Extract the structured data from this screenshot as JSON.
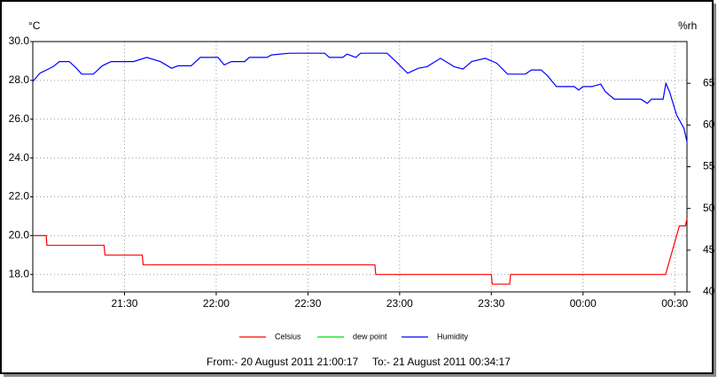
{
  "chart_data": {
    "type": "line",
    "ylabel": "°C",
    "y2label": "%rh",
    "xlim": [
      0,
      214
    ],
    "xticks": [
      {
        "value": 30,
        "label": "21:30"
      },
      {
        "value": 60,
        "label": "22:00"
      },
      {
        "value": 90,
        "label": "22:30"
      },
      {
        "value": 120,
        "label": "23:00"
      },
      {
        "value": 150,
        "label": "23:30"
      },
      {
        "value": 180,
        "label": "00:00"
      },
      {
        "value": 210,
        "label": "00:30"
      }
    ],
    "ylim": [
      17.1,
      30.0
    ],
    "yticks": [
      {
        "value": 18,
        "label": "18.0"
      },
      {
        "value": 20,
        "label": "20.0"
      },
      {
        "value": 22,
        "label": "22.0"
      },
      {
        "value": 24,
        "label": "24.0"
      },
      {
        "value": 26,
        "label": "26.0"
      },
      {
        "value": 28,
        "label": "28.0"
      },
      {
        "value": 30,
        "label": "30.0"
      }
    ],
    "y2lim": [
      40,
      70
    ],
    "y2ticks": [
      40,
      45,
      50,
      55,
      60,
      65
    ],
    "grid": true,
    "series": [
      {
        "name": "Celsius",
        "color": "#ff0000",
        "x": [
          0,
          4.4,
          4.6,
          23.3,
          23.6,
          35.8,
          36.1,
          111.9,
          112.2,
          150,
          150.3,
          156,
          156.3,
          207,
          211.5,
          213.5,
          214
        ],
        "values": [
          20,
          20,
          19.5,
          19.5,
          19,
          19,
          18.5,
          18.5,
          18,
          18,
          17.5,
          17.5,
          18,
          18,
          20.5,
          20.5,
          20.9
        ]
      },
      {
        "name": "dew point",
        "color": "#00dd00",
        "x": [],
        "values": []
      },
      {
        "name": "Humidity",
        "color": "#0000ff",
        "axis": "y2",
        "x": [
          0,
          2.3,
          6.7,
          8.7,
          11.9,
          14.0,
          16.0,
          19.8,
          22.7,
          25.6,
          32.9,
          37.3,
          41.7,
          45.4,
          47.5,
          51.8,
          54.8,
          60.6,
          62.6,
          65.0,
          69.3,
          70.8,
          76.6,
          78.1,
          83.9,
          95.5,
          97.0,
          101.4,
          102.8,
          105.7,
          107.2,
          115.9,
          118.8,
          122.6,
          126.1,
          129.0,
          133.4,
          137.8,
          140.7,
          143.6,
          148.0,
          151.8,
          155.3,
          161.1,
          163.1,
          166.3,
          168.4,
          171.3,
          177.1,
          178.6,
          180.0,
          182.9,
          185.8,
          187.3,
          190.2,
          198.9,
          201.0,
          202.4,
          206.2,
          207.1,
          208.3,
          210.6,
          213.0,
          214
        ],
        "values": [
          65.2,
          66.2,
          67.0,
          67.6,
          67.6,
          66.9,
          66.1,
          66.1,
          67.1,
          67.6,
          67.6,
          68.1,
          67.6,
          66.8,
          67.1,
          67.1,
          68.1,
          68.1,
          67.2,
          67.6,
          67.6,
          68.1,
          68.1,
          68.4,
          68.6,
          68.6,
          68.1,
          68.1,
          68.5,
          68.1,
          68.6,
          68.6,
          67.6,
          66.2,
          66.8,
          67.0,
          68.0,
          67.0,
          66.7,
          67.6,
          68.0,
          67.4,
          66.1,
          66.1,
          66.6,
          66.6,
          65.9,
          64.6,
          64.6,
          64.2,
          64.6,
          64.6,
          64.9,
          64.0,
          63.1,
          63.1,
          62.6,
          63.1,
          63.1,
          65.0,
          64.0,
          61.2,
          59.6,
          58.0
        ]
      }
    ],
    "footer": {
      "from": "From:- 20 August 2011 21:00:17",
      "to": "To:- 21 August 2011 00:34:17"
    }
  }
}
